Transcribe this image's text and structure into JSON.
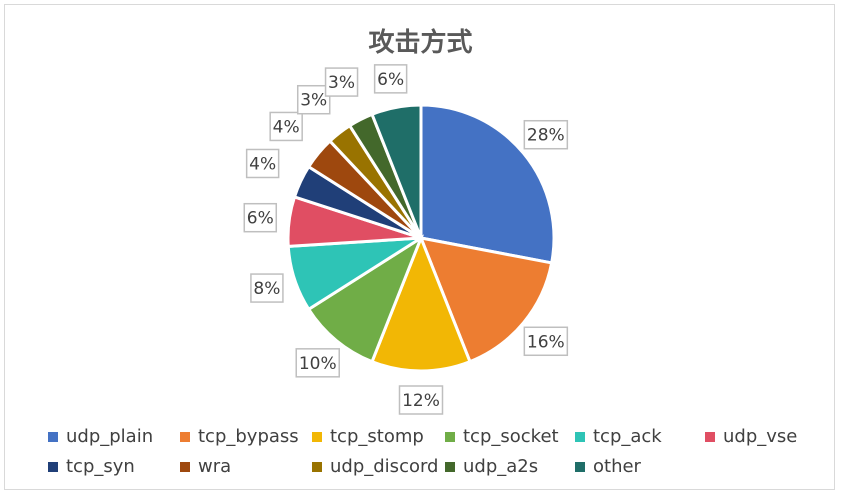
{
  "chart_data": {
    "type": "pie",
    "title": "攻击方式",
    "categories": [
      "udp_plain",
      "tcp_bypass",
      "tcp_stomp",
      "tcp_socket",
      "tcp_ack",
      "udp_vse",
      "tcp_syn",
      "wra",
      "udp_discord",
      "udp_a2s",
      "other"
    ],
    "values": [
      28,
      16,
      12,
      10,
      8,
      6,
      4,
      4,
      3,
      3,
      6
    ],
    "data_labels": [
      "28%",
      "16%",
      "12%",
      "10%",
      "8%",
      "6%",
      "4%",
      "4%",
      "3%",
      "3%",
      "6%"
    ],
    "colors": [
      "#4472c4",
      "#ed7d31",
      "#f2b705",
      "#70ad47",
      "#2ec4b6",
      "#e04e63",
      "#203f78",
      "#9e480e",
      "#997300",
      "#43682b",
      "#1f6e68"
    ],
    "legend_position": "bottom",
    "start_angle": "top, clockwise"
  }
}
